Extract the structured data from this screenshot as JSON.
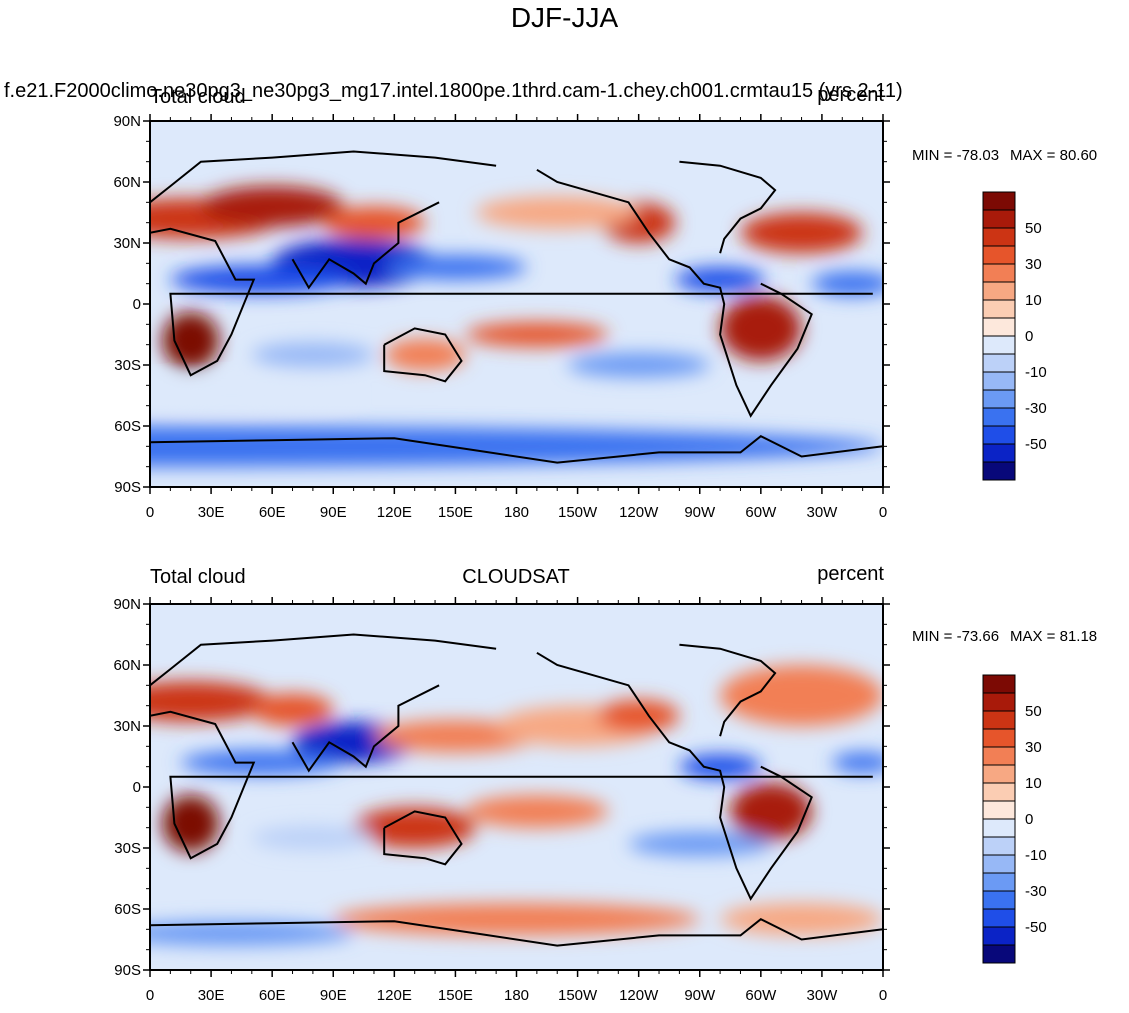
{
  "figure": {
    "title": "DJF-JJA"
  },
  "colors": {
    "levels": [
      "#08087a",
      "#0b23c6",
      "#1f4ee8",
      "#3a72f0",
      "#6b9af4",
      "#97b8f6",
      "#bcd1f8",
      "#dde9fb",
      "#fde8dc",
      "#fbcdb3",
      "#f7a883",
      "#f27f55",
      "#e6552b",
      "#cc3414",
      "#a81a0a",
      "#7c0a04"
    ],
    "coast": "#000000"
  },
  "chart_data": [
    {
      "type": "heatmap",
      "subtype": "filled-contour map",
      "title_left": "Total cloud",
      "title_top": "f.e21.F2000climo.ne30pg3_ne30pg3_mg17.intel.1800pe.1thrd.cam-1.chey.ch001.crmtau15 (yrs 2-11)",
      "title_right": "percent",
      "min": -78.03,
      "max": 80.6,
      "min_label": "MIN = -78.03",
      "max_label": "MAX =  80.60",
      "x_ticks": [
        "0",
        "30E",
        "60E",
        "90E",
        "120E",
        "150E",
        "180",
        "150W",
        "120W",
        "90W",
        "60W",
        "30W",
        "0"
      ],
      "y_ticks": [
        "90N",
        "60N",
        "30N",
        "0",
        "30S",
        "60S",
        "90S"
      ],
      "xlim": [
        0,
        360
      ],
      "ylim": [
        -90,
        90
      ],
      "colorbar_labels": [
        "50",
        "30",
        "10",
        "0",
        "-10",
        "-30",
        "-50"
      ]
    },
    {
      "type": "heatmap",
      "subtype": "filled-contour map",
      "title_left": "Total cloud",
      "title_center": "CLOUDSAT",
      "title_right": "percent",
      "min": -73.66,
      "max": 81.18,
      "min_label": "MIN = -73.66",
      "max_label": "MAX =  81.18",
      "x_ticks": [
        "0",
        "30E",
        "60E",
        "90E",
        "120E",
        "150E",
        "180",
        "150W",
        "120W",
        "90W",
        "60W",
        "30W",
        "0"
      ],
      "y_ticks": [
        "90N",
        "60N",
        "30N",
        "0",
        "30S",
        "60S",
        "90S"
      ],
      "xlim": [
        0,
        360
      ],
      "ylim": [
        -90,
        90
      ],
      "colorbar_labels": [
        "50",
        "30",
        "10",
        "0",
        "-10",
        "-30",
        "-50"
      ]
    }
  ]
}
